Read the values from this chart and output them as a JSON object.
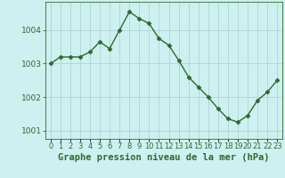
{
  "x": [
    0,
    1,
    2,
    3,
    4,
    5,
    6,
    7,
    8,
    9,
    10,
    11,
    12,
    13,
    14,
    15,
    16,
    17,
    18,
    19,
    20,
    21,
    22,
    23
  ],
  "y": [
    1003.0,
    1003.2,
    1003.2,
    1003.2,
    1003.35,
    1003.65,
    1003.45,
    1004.0,
    1004.55,
    1004.35,
    1004.2,
    1003.75,
    1003.55,
    1003.1,
    1002.6,
    1002.3,
    1002.0,
    1001.65,
    1001.35,
    1001.25,
    1001.45,
    1001.9,
    1002.15,
    1002.5
  ],
  "line_color": "#2d6a2d",
  "marker": "D",
  "marker_size": 2.5,
  "background_color": "#cff0f0",
  "grid_color": "#aed4d4",
  "xlabel": "Graphe pression niveau de la mer (hPa)",
  "xlabel_fontsize": 7.5,
  "tick_fontsize": 6.5,
  "ylim": [
    1000.75,
    1004.85
  ],
  "yticks": [
    1001,
    1002,
    1003,
    1004
  ],
  "xtick_labels": [
    "0",
    "1",
    "2",
    "3",
    "4",
    "5",
    "6",
    "7",
    "8",
    "9",
    "10",
    "11",
    "12",
    "13",
    "14",
    "15",
    "16",
    "17",
    "18",
    "19",
    "20",
    "21",
    "22",
    "23"
  ],
  "line_width": 1.0,
  "axis_color": "#2d6a2d"
}
